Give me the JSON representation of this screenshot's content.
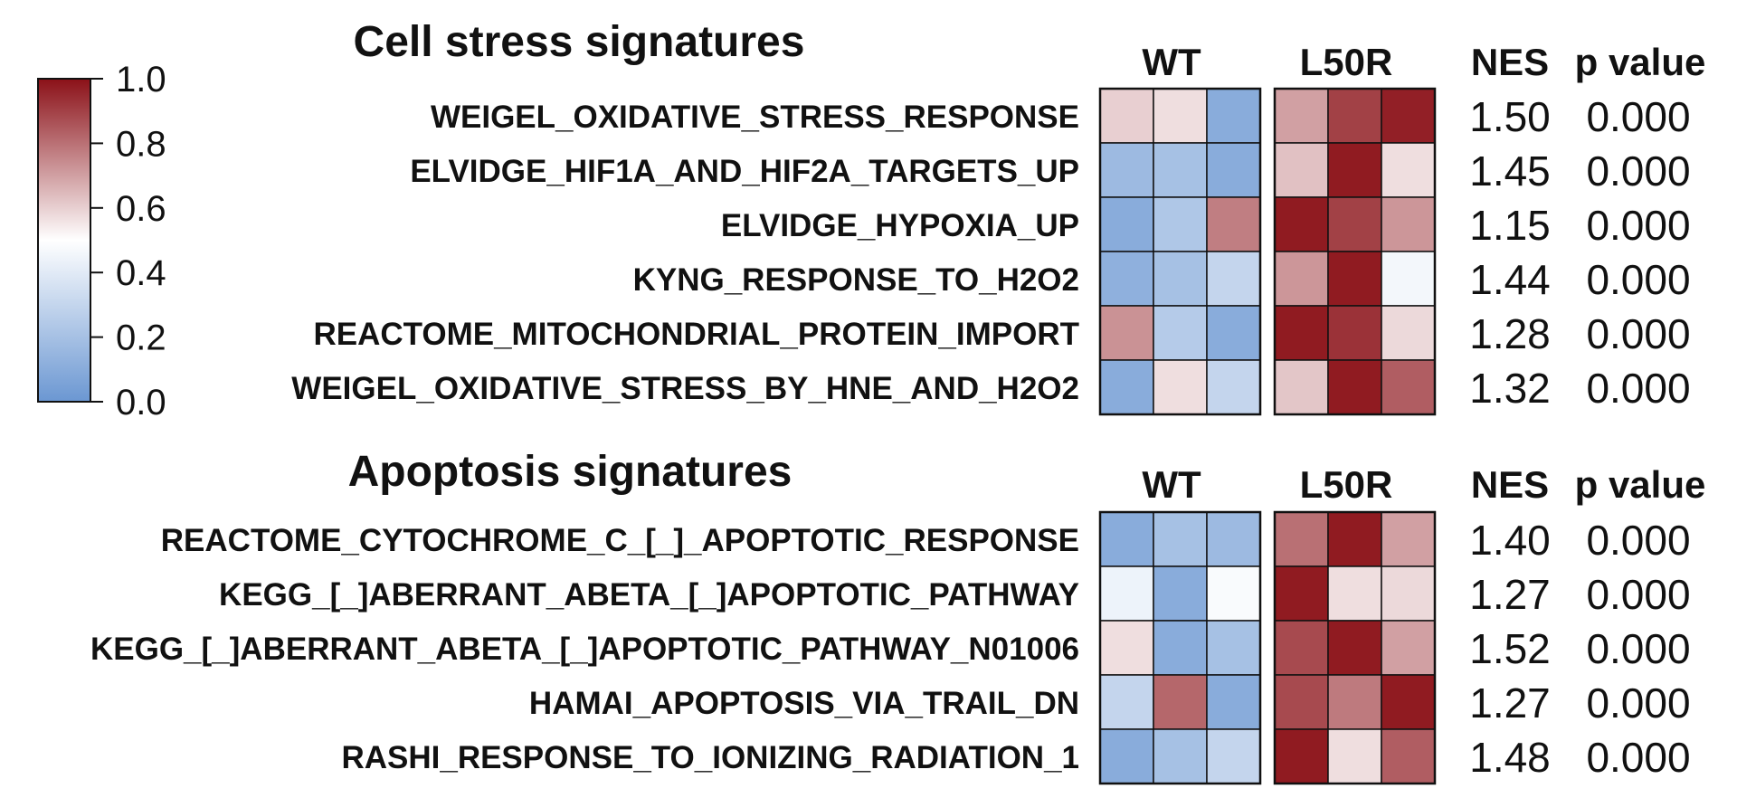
{
  "chart_data": {
    "type": "heatmap",
    "color_scale": {
      "ticks": [
        "0.0",
        "0.2",
        "0.4",
        "0.6",
        "0.8",
        "1.0"
      ],
      "range": [
        0,
        1
      ],
      "low_color": "#6b97d2",
      "mid_color": "#ffffff",
      "high_color": "#8b1118"
    },
    "panels": [
      {
        "title": "Cell stress signatures",
        "groups": [
          "WT",
          "L50R"
        ],
        "nes_header": "NES",
        "p_header": "p value",
        "rows": [
          {
            "label": "WEIGEL_OXIDATIVE_STRESS_RESPONSE",
            "wt": [
              0.6,
              0.57,
              0.1
            ],
            "l50r": [
              0.7,
              0.9,
              0.97
            ],
            "nes": "1.50",
            "p": "0.000"
          },
          {
            "label": "ELVIDGE_HIF1A_AND_HIF2A_TARGETS_UP",
            "wt": [
              0.17,
              0.2,
              0.1
            ],
            "l50r": [
              0.63,
              0.98,
              0.57
            ],
            "nes": "1.45",
            "p": "0.000"
          },
          {
            "label": "ELVIDGE_HYPOXIA_UP",
            "wt": [
              0.1,
              0.23,
              0.77
            ],
            "l50r": [
              0.98,
              0.9,
              0.72
            ],
            "nes": "1.15",
            "p": "0.000"
          },
          {
            "label": "KYNG_RESPONSE_TO_H2O2",
            "wt": [
              0.12,
              0.2,
              0.3
            ],
            "l50r": [
              0.72,
              0.98,
              0.46
            ],
            "nes": "1.44",
            "p": "0.000"
          },
          {
            "label": "REACTOME_MITOCHONDRIAL_PROTEIN_IMPORT",
            "wt": [
              0.73,
              0.25,
              0.1
            ],
            "l50r": [
              0.98,
              0.93,
              0.58
            ],
            "nes": "1.28",
            "p": "0.000"
          },
          {
            "label": "WEIGEL_OXIDATIVE_STRESS_BY_HNE_AND_H2O2",
            "wt": [
              0.1,
              0.57,
              0.3
            ],
            "l50r": [
              0.62,
              0.98,
              0.84
            ],
            "nes": "1.32",
            "p": "0.000"
          }
        ]
      },
      {
        "title": "Apoptosis signatures",
        "groups": [
          "WT",
          "L50R"
        ],
        "nes_header": "NES",
        "p_header": "p value",
        "rows": [
          {
            "label": "REACTOME_CYTOCHROME_C_[_]_APOPTOTIC_RESPONSE",
            "wt": [
              0.1,
              0.2,
              0.17
            ],
            "l50r": [
              0.8,
              0.98,
              0.7
            ],
            "nes": "1.40",
            "p": "0.000"
          },
          {
            "label": "KEGG_[_]ABERRANT_ABETA_[_]APOPTOTIC_PATHWAY",
            "wt": [
              0.44,
              0.1,
              0.48
            ],
            "l50r": [
              0.98,
              0.57,
              0.58
            ],
            "nes": "1.27",
            "p": "0.000"
          },
          {
            "label": "KEGG_[_]ABERRANT_ABETA_[_]APOPTOTIC_PATHWAY_N01006",
            "wt": [
              0.57,
              0.1,
              0.2
            ],
            "l50r": [
              0.88,
              0.98,
              0.7
            ],
            "nes": "1.52",
            "p": "0.000"
          },
          {
            "label": "HAMAI_APOPTOSIS_VIA_TRAIL_DN",
            "wt": [
              0.3,
              0.82,
              0.1
            ],
            "l50r": [
              0.88,
              0.78,
              0.98
            ],
            "nes": "1.27",
            "p": "0.000"
          },
          {
            "label": "RASHI_RESPONSE_TO_IONIZING_RADIATION_1",
            "wt": [
              0.1,
              0.2,
              0.3
            ],
            "l50r": [
              0.98,
              0.57,
              0.84
            ],
            "nes": "1.48",
            "p": "0.000"
          }
        ]
      }
    ]
  }
}
